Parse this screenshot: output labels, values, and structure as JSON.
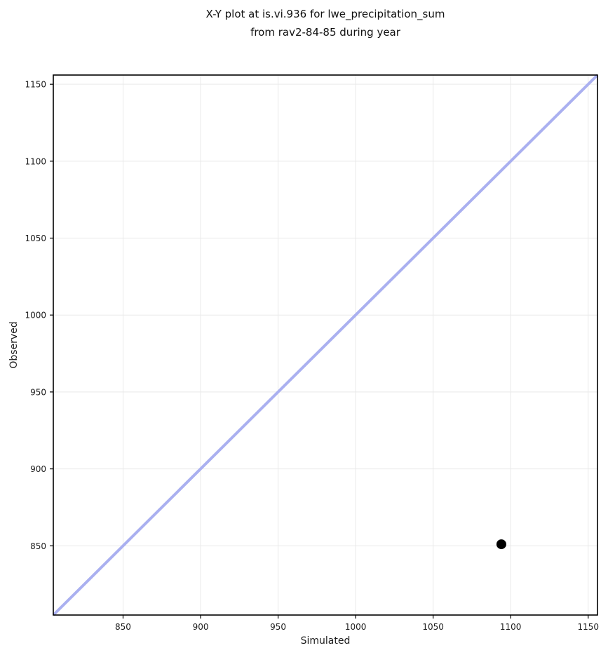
{
  "chart_data": {
    "type": "scatter",
    "title_line1": "X-Y plot at is.vi.936 for lwe_precipitation_sum",
    "title_line2": "from rav2-84-85 during year",
    "xlabel": "Simulated",
    "ylabel": "Observed",
    "xlim": [
      805,
      1156
    ],
    "ylim": [
      805,
      1156
    ],
    "xticks": [
      850,
      900,
      950,
      1000,
      1050,
      1100,
      1150
    ],
    "yticks": [
      850,
      900,
      950,
      1000,
      1050,
      1100,
      1150
    ],
    "grid": true,
    "legend_position": "none",
    "identity_line": {
      "x": [
        805,
        1156
      ],
      "y": [
        805,
        1156
      ],
      "color": "#aab0f0",
      "stroke_width": 4
    },
    "series": [
      {
        "name": "simulated-vs-observed",
        "marker": "circle",
        "color": "#000000",
        "marker_radius": 7,
        "points": [
          {
            "x": 1094,
            "y": 851
          }
        ]
      }
    ],
    "colors": {
      "grid": "#e9e9e9",
      "spine": "#000000",
      "tick_text": "#1c1c1c",
      "background": "#ffffff"
    }
  }
}
